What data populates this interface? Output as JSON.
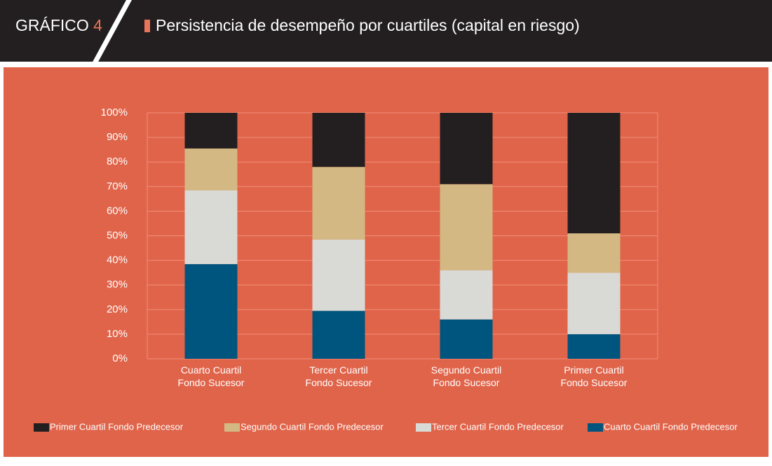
{
  "header": {
    "label": "GRÁFICO",
    "number": "4"
  },
  "chart_data": {
    "type": "stacked_bar",
    "title": "Persistencia de desempeño por cuartiles (capital en riesgo)",
    "categories": [
      "Cuarto Cuartil\nFondo Sucesor",
      "Tercer Cuartil\nFondo Sucesor",
      "Segundo Cuartil\nFondo Sucesor",
      "Primer Cuartil\nFondo Sucesor"
    ],
    "series": [
      {
        "name": "Primer Cuartil Fondo Predecesor",
        "color": "#231f20",
        "values": [
          14.5,
          22,
          29,
          49
        ]
      },
      {
        "name": "Segundo Cuartil Fondo Predecesor",
        "color": "#d4b883",
        "values": [
          17,
          29.5,
          35,
          16
        ]
      },
      {
        "name": "Tercer Cuartil Fondo Predecesor",
        "color": "#d9dad6",
        "values": [
          30,
          29,
          20,
          25
        ]
      },
      {
        "name": "Cuarto Cuartil Fondo Predecesor",
        "color": "#00557f",
        "values": [
          38.5,
          19.5,
          16,
          10
        ]
      }
    ],
    "ylim": [
      0,
      100
    ],
    "yticks": [
      {
        "value": 0,
        "label": "0%"
      },
      {
        "value": 10,
        "label": "10%"
      },
      {
        "value": 20,
        "label": "20%"
      },
      {
        "value": 30,
        "label": "30%"
      },
      {
        "value": 40,
        "label": "40%"
      },
      {
        "value": 50,
        "label": "50%"
      },
      {
        "value": 60,
        "label": "60%"
      },
      {
        "value": 70,
        "label": "70%"
      },
      {
        "value": 80,
        "label": "80%"
      },
      {
        "value": 90,
        "label": "90%"
      },
      {
        "value": 100,
        "label": "100%"
      }
    ],
    "grid": true,
    "legend": "bottom"
  }
}
